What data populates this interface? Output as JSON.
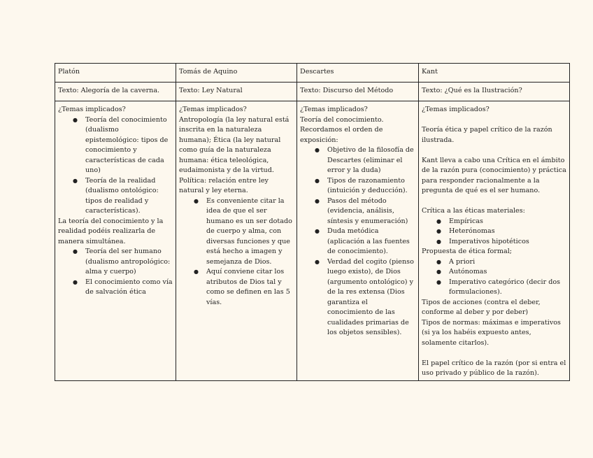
{
  "table": {
    "columns": [
      {
        "author": "Platón",
        "text": "Texto: Alegoría de la caverna.",
        "blocks": [
          {
            "type": "p",
            "text": "¿Temas implicados?"
          },
          {
            "type": "ul",
            "items": [
              "Teoría del conocimiento (dualismo epistemológico: tipos de conocimiento y características de cada uno)",
              "Teoría de la realidad (dualismo ontológico: tipos de realidad y características)."
            ]
          },
          {
            "type": "p",
            "text": "La teoría del conocimiento y la realidad podéis realizarla de manera simultánea."
          },
          {
            "type": "ul",
            "items": [
              "Teoría del ser humano (dualismo antropológico: alma y cuerpo)",
              "El conocimiento como vía de salvación ética"
            ]
          }
        ]
      },
      {
        "author": "Tomás de Aquino",
        "text": "Texto: Ley Natural",
        "blocks": [
          {
            "type": "p",
            "text": "¿Temas implicados?"
          },
          {
            "type": "p",
            "text": "Antropología (la ley natural está inscrita en la naturaleza humana); Ética (la ley natural como guía de la naturaleza humana: ética teleológica, eudaimonista y de la virtud. Política: relación entre ley natural y ley eterna."
          },
          {
            "type": "ul",
            "items": [
              "Es conveniente citar la idea de que el ser humano es un ser dotado de cuerpo y alma, con diversas funciones y que está hecho a imagen y semejanza de Dios.",
              "Aquí conviene citar los atributos de Dios tal y como se definen en las 5 vías."
            ]
          }
        ]
      },
      {
        "author": "Descartes",
        "text": "Texto: Discurso del Método",
        "blocks": [
          {
            "type": "p",
            "text": "¿Temas implicados?"
          },
          {
            "type": "p",
            "text": "Teoría del conocimiento."
          },
          {
            "type": "p",
            "text": "Recordamos el orden de exposición:"
          },
          {
            "type": "ul",
            "items": [
              "Objetivo de la filosofía de Descartes (eliminar el error y la duda)",
              "Tipos de razonamiento (intuición y deducción).",
              "Pasos del método (evidencia, análisis, síntesis y enumeración)",
              "Duda metódica (aplicación a las fuentes de conocimiento).",
              "Verdad del cogito (pienso luego existo), de Dios (argumento ontológico) y de la res extensa (Dios garantiza el conocimiento de las cualidades primarias de los objetos sensibles)."
            ]
          }
        ]
      },
      {
        "author": "Kant",
        "text": "Texto: ¿Qué es la Ilustración?",
        "blocks": [
          {
            "type": "p",
            "text": "¿Temas implicados?"
          },
          {
            "type": "blank"
          },
          {
            "type": "p",
            "text": "Teoría ética y papel crítico de la razón ilustrada."
          },
          {
            "type": "blank"
          },
          {
            "type": "p",
            "text": "Kant lleva a cabo una Crítica en el ámbito de la razón pura (conocimiento) y práctica para responder racionalmente a la pregunta de qué es el ser humano."
          },
          {
            "type": "blank"
          },
          {
            "type": "p",
            "text": "Crítica a las éticas materiales:"
          },
          {
            "type": "ul",
            "items": [
              "Empíricas",
              "Heterónomas",
              "Imperativos hipotéticos"
            ]
          },
          {
            "type": "p",
            "text": "Propuesta de ética formal;"
          },
          {
            "type": "ul",
            "items": [
              " A priori",
              "Autónomas",
              "Imperativo categórico (decir dos formulaciones)."
            ]
          },
          {
            "type": "p",
            "text": "Tipos de acciones (contra el deber, conforme al deber y por deber)"
          },
          {
            "type": "p",
            "text": "Tipos de normas: máximas e imperativos (si ya los habéis expuesto antes, solamente citarlos)."
          },
          {
            "type": "blank"
          },
          {
            "type": "p",
            "text": "El papel crítico de la razón (por si entra el uso privado y público de la razón)."
          }
        ]
      }
    ]
  }
}
